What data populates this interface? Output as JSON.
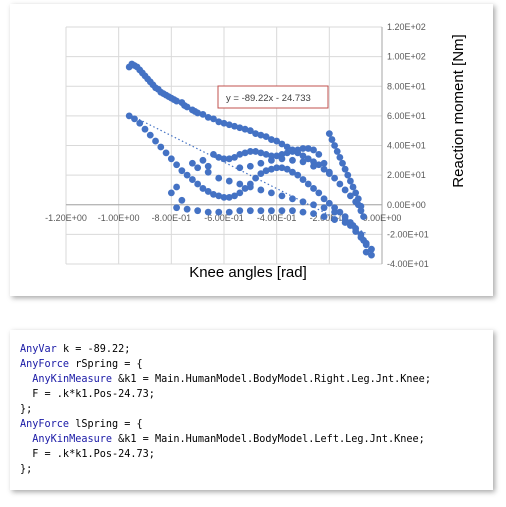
{
  "chart_data": {
    "type": "scatter",
    "title": "",
    "xlabel": "Knee angles [rad]",
    "ylabel": "Reaction moment [Nm]",
    "xlim": [
      -1.2,
      0.0
    ],
    "ylim": [
      -40,
      120
    ],
    "x_ticks": [
      "-1.20E+00",
      "-1.00E+00",
      "-8.00E-01",
      "-6.00E-01",
      "-4.00E-01",
      "-2.00E-01",
      "0.00E+00"
    ],
    "y_ticks": [
      "-4.00E+01",
      "-2.00E+01",
      "0.00E+00",
      "2.00E+01",
      "4.00E+01",
      "6.00E+01",
      "8.00E+01",
      "1.00E+02",
      "1.20E+02"
    ],
    "grid": true,
    "marker_color": "#4472c4",
    "trendline": {
      "equation": "y = -89.22x - 24.733",
      "slope": -89.22,
      "intercept": -24.733,
      "x_range": [
        -0.95,
        -0.06
      ],
      "style": "dotted"
    },
    "series": [
      {
        "points": [
          [
            -0.96,
            93
          ],
          [
            -0.95,
            95
          ],
          [
            -0.94,
            94
          ],
          [
            -0.93,
            93
          ],
          [
            -0.92,
            91
          ],
          [
            -0.91,
            89
          ],
          [
            -0.9,
            87
          ],
          [
            -0.89,
            85
          ],
          [
            -0.88,
            83
          ],
          [
            -0.87,
            81
          ],
          [
            -0.86,
            79
          ],
          [
            -0.85,
            78
          ],
          [
            -0.84,
            76
          ],
          [
            -0.83,
            75
          ],
          [
            -0.82,
            74
          ],
          [
            -0.81,
            73
          ],
          [
            -0.8,
            72
          ],
          [
            -0.79,
            71
          ],
          [
            -0.78,
            70
          ],
          [
            -0.76,
            69
          ],
          [
            -0.75,
            67
          ],
          [
            -0.74,
            66
          ],
          [
            -0.72,
            64
          ],
          [
            -0.71,
            63
          ],
          [
            -0.7,
            62
          ],
          [
            -0.68,
            61
          ],
          [
            -0.66,
            59
          ],
          [
            -0.64,
            58
          ],
          [
            -0.62,
            56
          ],
          [
            -0.6,
            55
          ],
          [
            -0.58,
            54
          ],
          [
            -0.56,
            53
          ],
          [
            -0.54,
            52
          ],
          [
            -0.52,
            51
          ],
          [
            -0.5,
            50
          ],
          [
            -0.48,
            48
          ],
          [
            -0.46,
            47
          ],
          [
            -0.44,
            46
          ],
          [
            -0.42,
            44
          ],
          [
            -0.4,
            43
          ],
          [
            -0.38,
            41
          ],
          [
            -0.36,
            39
          ],
          [
            -0.34,
            37
          ],
          [
            -0.32,
            35
          ],
          [
            -0.3,
            33
          ],
          [
            -0.28,
            31
          ],
          [
            -0.26,
            29
          ],
          [
            -0.24,
            27
          ],
          [
            -0.22,
            24
          ],
          [
            -0.2,
            21
          ],
          [
            -0.18,
            18
          ],
          [
            -0.16,
            14
          ],
          [
            -0.14,
            10
          ],
          [
            -0.12,
            6
          ],
          [
            -0.1,
            2
          ],
          [
            -0.08,
            -1
          ],
          [
            -0.96,
            60
          ],
          [
            -0.94,
            58
          ],
          [
            -0.92,
            55
          ],
          [
            -0.9,
            51
          ],
          [
            -0.88,
            47
          ],
          [
            -0.86,
            43
          ],
          [
            -0.84,
            39
          ],
          [
            -0.82,
            35
          ],
          [
            -0.8,
            31
          ],
          [
            -0.78,
            27
          ],
          [
            -0.76,
            23
          ],
          [
            -0.74,
            20
          ],
          [
            -0.72,
            17
          ],
          [
            -0.7,
            14
          ],
          [
            -0.68,
            11
          ],
          [
            -0.66,
            9
          ],
          [
            -0.64,
            7
          ],
          [
            -0.62,
            6
          ],
          [
            -0.6,
            5
          ],
          [
            -0.58,
            5
          ],
          [
            -0.56,
            6
          ],
          [
            -0.54,
            8
          ],
          [
            -0.52,
            11
          ],
          [
            -0.5,
            14
          ],
          [
            -0.48,
            18
          ],
          [
            -0.46,
            21
          ],
          [
            -0.44,
            23
          ],
          [
            -0.42,
            24
          ],
          [
            -0.4,
            25
          ],
          [
            -0.38,
            25
          ],
          [
            -0.36,
            24
          ],
          [
            -0.34,
            22
          ],
          [
            -0.32,
            20
          ],
          [
            -0.3,
            17
          ],
          [
            -0.28,
            14
          ],
          [
            -0.26,
            11
          ],
          [
            -0.24,
            8
          ],
          [
            -0.22,
            4
          ],
          [
            -0.2,
            1
          ],
          [
            -0.18,
            -2
          ],
          [
            -0.16,
            -5
          ],
          [
            -0.14,
            -8
          ],
          [
            -0.12,
            -12
          ],
          [
            -0.1,
            -16
          ],
          [
            -0.08,
            -20
          ],
          [
            -0.07,
            -24
          ],
          [
            -0.06,
            -27
          ],
          [
            -0.06,
            -32
          ],
          [
            -0.2,
            48
          ],
          [
            -0.19,
            44
          ],
          [
            -0.18,
            40
          ],
          [
            -0.17,
            36
          ],
          [
            -0.16,
            32
          ],
          [
            -0.15,
            28
          ],
          [
            -0.14,
            24
          ],
          [
            -0.13,
            20
          ],
          [
            -0.12,
            16
          ],
          [
            -0.11,
            12
          ],
          [
            -0.1,
            8
          ],
          [
            -0.09,
            4
          ],
          [
            -0.09,
            0
          ],
          [
            -0.08,
            -4
          ],
          [
            -0.07,
            -8
          ],
          [
            -0.64,
            34
          ],
          [
            -0.62,
            32
          ],
          [
            -0.6,
            31
          ],
          [
            -0.58,
            31
          ],
          [
            -0.56,
            32
          ],
          [
            -0.54,
            34
          ],
          [
            -0.52,
            35
          ],
          [
            -0.5,
            36
          ],
          [
            -0.48,
            36
          ],
          [
            -0.46,
            35
          ],
          [
            -0.44,
            34
          ],
          [
            -0.42,
            33
          ],
          [
            -0.4,
            33
          ],
          [
            -0.38,
            34
          ],
          [
            -0.36,
            35
          ],
          [
            -0.34,
            36
          ],
          [
            -0.32,
            37
          ],
          [
            -0.3,
            38
          ],
          [
            -0.28,
            38
          ],
          [
            -0.26,
            37
          ],
          [
            -0.24,
            34
          ],
          [
            -0.22,
            28
          ],
          [
            -0.2,
            22
          ],
          [
            -0.54,
            25
          ],
          [
            -0.5,
            26
          ],
          [
            -0.46,
            28
          ],
          [
            -0.42,
            30
          ],
          [
            -0.38,
            31
          ],
          [
            -0.34,
            30
          ],
          [
            -0.3,
            29
          ],
          [
            -0.26,
            26
          ],
          [
            -0.72,
            28
          ],
          [
            -0.7,
            25
          ],
          [
            -0.66,
            22
          ],
          [
            -0.62,
            18
          ],
          [
            -0.58,
            16
          ],
          [
            -0.54,
            14
          ],
          [
            -0.5,
            12
          ],
          [
            -0.46,
            10
          ],
          [
            -0.42,
            8
          ],
          [
            -0.38,
            6
          ],
          [
            -0.34,
            4
          ],
          [
            -0.3,
            2
          ],
          [
            -0.26,
            0
          ],
          [
            -0.22,
            -2
          ],
          [
            -0.18,
            -5
          ],
          [
            -0.14,
            -10
          ],
          [
            -0.12,
            -14
          ],
          [
            -0.1,
            -18
          ],
          [
            -0.08,
            -22
          ],
          [
            -0.06,
            -26
          ],
          [
            -0.04,
            -30
          ],
          [
            -0.04,
            -34
          ],
          [
            -0.78,
            -2
          ],
          [
            -0.74,
            -3
          ],
          [
            -0.7,
            -4
          ],
          [
            -0.66,
            -5
          ],
          [
            -0.62,
            -5
          ],
          [
            -0.58,
            -5
          ],
          [
            -0.54,
            -4
          ],
          [
            -0.5,
            -4
          ],
          [
            -0.46,
            -4
          ],
          [
            -0.42,
            -4
          ],
          [
            -0.38,
            -4
          ],
          [
            -0.34,
            -4
          ],
          [
            -0.3,
            -5
          ],
          [
            -0.26,
            -6
          ],
          [
            -0.22,
            -8
          ],
          [
            -0.18,
            -10
          ],
          [
            -0.14,
            -12
          ],
          [
            -0.11,
            -14
          ],
          [
            -0.8,
            8
          ],
          [
            -0.78,
            12
          ],
          [
            -0.76,
            3
          ],
          [
            -0.68,
            30
          ],
          [
            -0.66,
            26
          ]
        ]
      }
    ]
  },
  "code": {
    "lines": [
      [
        {
          "t": "AnyVar",
          "kw": true
        },
        {
          "t": " k = -89.22;"
        }
      ],
      [
        {
          "t": "AnyForce",
          "kw": true
        },
        {
          "t": " rSpring = {"
        }
      ],
      [
        {
          "t": "  "
        },
        {
          "t": "AnyKinMeasure",
          "kw": true
        },
        {
          "t": " &k1 = Main.HumanModel.BodyModel.Right.Leg.Jnt.Knee;"
        }
      ],
      [
        {
          "t": "  F = .k*k1.Pos-24.73;"
        }
      ],
      [
        {
          "t": "};"
        }
      ],
      [
        {
          "t": "AnyForce",
          "kw": true
        },
        {
          "t": " lSpring = {"
        }
      ],
      [
        {
          "t": "  "
        },
        {
          "t": "AnyKinMeasure",
          "kw": true
        },
        {
          "t": " &k1 = Main.HumanModel.BodyModel.Left.Leg.Jnt.Knee;"
        }
      ],
      [
        {
          "t": "  F = .k*k1.Pos-24.73;"
        }
      ],
      [
        {
          "t": "};"
        }
      ]
    ]
  }
}
